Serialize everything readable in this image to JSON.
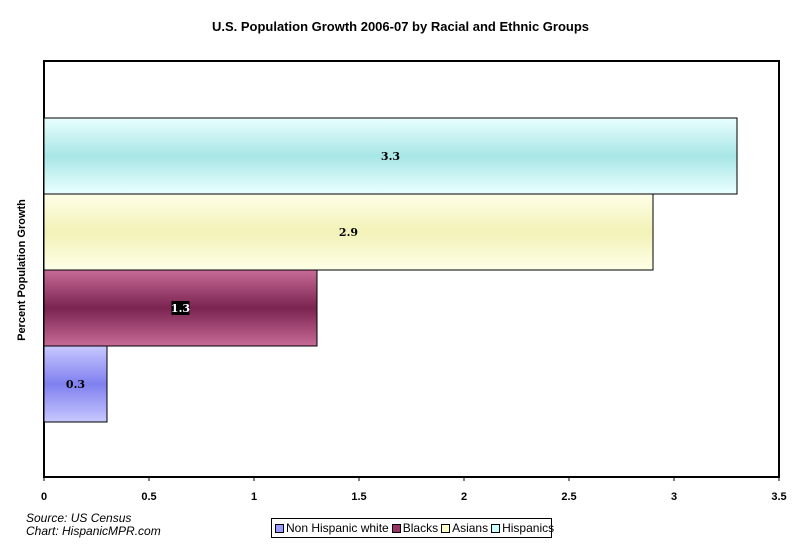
{
  "chart_data": {
    "type": "bar",
    "orientation": "horizontal",
    "title": "U.S. Population Growth 2006-07 by Racial and Ethnic Groups",
    "ylabel": "Percent Population Growth",
    "xlim": [
      0,
      3.5
    ],
    "xticks": [
      "0",
      "0.5",
      "1",
      "1.5",
      "2",
      "2.5",
      "3",
      "3.5"
    ],
    "series": [
      {
        "name": "Non Hispanic white",
        "value": 0.3,
        "color": "#9999ff",
        "label": "0.3"
      },
      {
        "name": "Blacks",
        "value": 1.3,
        "color": "#993366",
        "label": "1.3"
      },
      {
        "name": "Asians",
        "value": 2.9,
        "color": "#ffffcc",
        "label": "2.9"
      },
      {
        "name": "Hispanics",
        "value": 3.3,
        "color": "#ccffff",
        "label": "3.3"
      }
    ],
    "legend_position": "bottom"
  },
  "source": {
    "line1": "Source: US Census",
    "line2": "Chart: HispanicMPR.com"
  },
  "legend": {
    "items": [
      {
        "label": "Non Hispanic white",
        "color": "#9999ff"
      },
      {
        "label": "Blacks",
        "color": "#993366"
      },
      {
        "label": "Asians",
        "color": "#ffffcc"
      },
      {
        "label": "Hispanics",
        "color": "#ccffff"
      }
    ]
  }
}
